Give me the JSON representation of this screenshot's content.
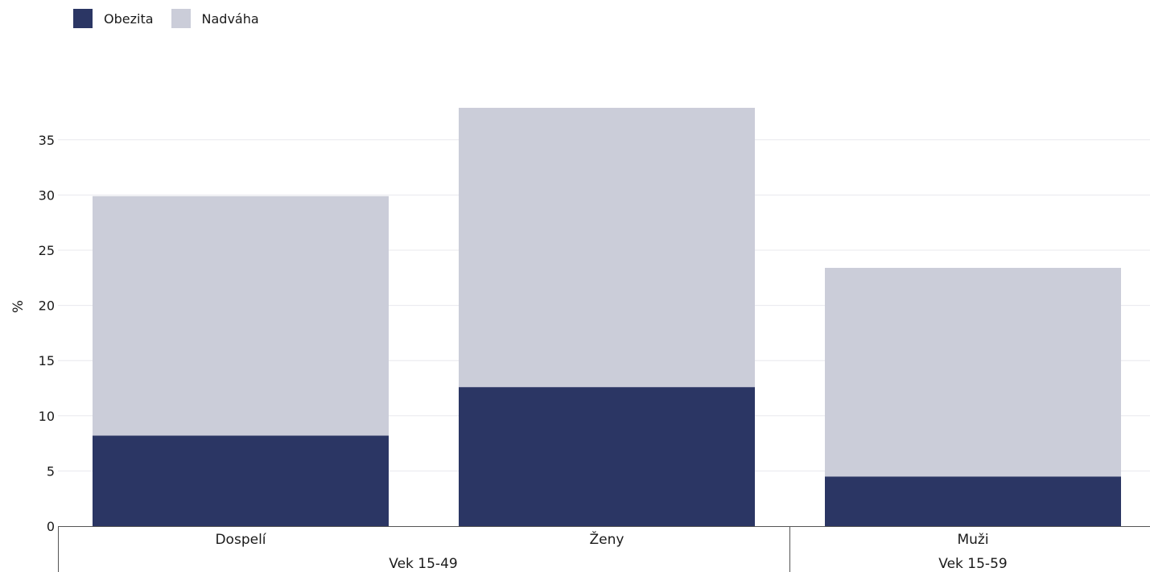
{
  "legend": [
    {
      "label": "Obezita",
      "color": "#2b3664"
    },
    {
      "label": "Nadváha",
      "color": "#cbcdd9"
    }
  ],
  "chart_data": {
    "type": "bar",
    "stacked": true,
    "ylabel": "%",
    "ylim": [
      0,
      38
    ],
    "yticks": [
      0,
      5,
      10,
      15,
      20,
      25,
      30,
      35
    ],
    "grid": true,
    "legend_position": "top-left",
    "categories": [
      "Dospelí",
      "Ženy",
      "Muži"
    ],
    "groups": [
      {
        "label": "Vek 15-49",
        "categories": [
          "Dospelí",
          "Ženy"
        ]
      },
      {
        "label": "Vek 15-59",
        "categories": [
          "Muži"
        ]
      }
    ],
    "series": [
      {
        "name": "Obezita",
        "color": "#2b3664",
        "values": [
          8.2,
          12.6,
          4.5
        ]
      },
      {
        "name": "Nadváha",
        "color": "#cbcdd9",
        "values": [
          21.7,
          25.3,
          18.9
        ]
      }
    ]
  }
}
